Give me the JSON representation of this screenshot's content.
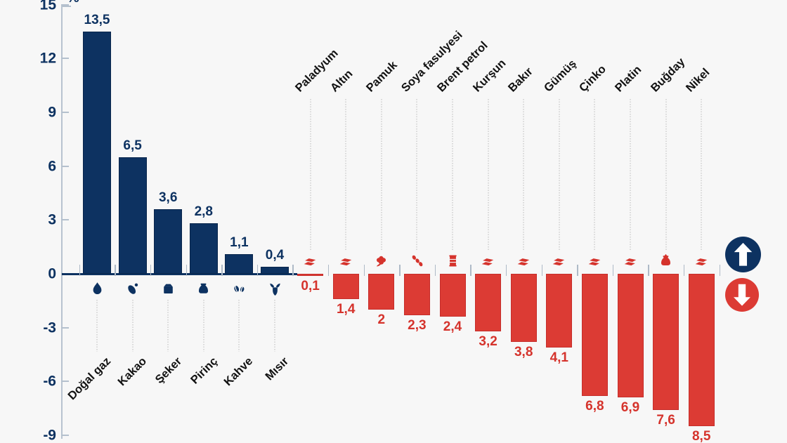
{
  "chart_data": {
    "type": "bar",
    "title": "",
    "value_unit": "%",
    "y_axis": {
      "label": "%",
      "ticks": [
        15,
        12,
        9,
        6,
        3,
        0,
        -3,
        -6,
        -9
      ],
      "min": -9.5,
      "max": 15.5,
      "grid": false
    },
    "legend": {
      "up_badge": "up-arrow-badge",
      "down_badge": "down-arrow-badge"
    },
    "bars": [
      {
        "label": "Doğal gaz",
        "value": 13.5,
        "display": "13,5",
        "direction": "up",
        "icon": "natural-gas-flame-icon"
      },
      {
        "label": "Kakao",
        "value": 6.5,
        "display": "6,5",
        "direction": "up",
        "icon": "cocoa-pod-icon"
      },
      {
        "label": "Şeker",
        "value": 3.6,
        "display": "3,6",
        "direction": "up",
        "icon": "sugar-box-icon"
      },
      {
        "label": "Pirinç",
        "value": 2.8,
        "display": "2,8",
        "direction": "up",
        "icon": "rice-sack-icon"
      },
      {
        "label": "Kahve",
        "value": 1.1,
        "display": "1,1",
        "direction": "up",
        "icon": "coffee-beans-icon"
      },
      {
        "label": "Mısır",
        "value": 0.4,
        "display": "0,4",
        "direction": "up",
        "icon": "corn-icon"
      },
      {
        "label": "Paladyum",
        "value": -0.1,
        "display": "0,1",
        "direction": "down",
        "icon": "metal-ingot-icon"
      },
      {
        "label": "Altın",
        "value": -1.4,
        "display": "1,4",
        "direction": "down",
        "icon": "metal-ingot-icon"
      },
      {
        "label": "Pamuk",
        "value": -2,
        "display": "2",
        "direction": "down",
        "icon": "cotton-boll-icon"
      },
      {
        "label": "Soya fasulyesi",
        "value": -2.3,
        "display": "2,3",
        "direction": "down",
        "icon": "soybean-icon"
      },
      {
        "label": "Brent petrol",
        "value": -2.4,
        "display": "2,4",
        "direction": "down",
        "icon": "oil-barrel-icon"
      },
      {
        "label": "Kurşun",
        "value": -3.2,
        "display": "3,2",
        "direction": "down",
        "icon": "metal-ingot-icon"
      },
      {
        "label": "Bakır",
        "value": -3.8,
        "display": "3,8",
        "direction": "down",
        "icon": "metal-ingot-icon"
      },
      {
        "label": "Gümüş",
        "value": -4.1,
        "display": "4,1",
        "direction": "down",
        "icon": "metal-ingot-icon"
      },
      {
        "label": "Çinko",
        "value": -6.8,
        "display": "6,8",
        "direction": "down",
        "icon": "metal-ingot-icon"
      },
      {
        "label": "Platin",
        "value": -6.9,
        "display": "6,9",
        "direction": "down",
        "icon": "metal-ingot-icon"
      },
      {
        "label": "Buğday",
        "value": -7.6,
        "display": "7,6",
        "direction": "down",
        "icon": "wheat-sack-icon"
      },
      {
        "label": "Nikel",
        "value": -8.5,
        "display": "8,5",
        "direction": "down",
        "icon": "metal-ingot-icon"
      }
    ],
    "colors": {
      "up": "#0d3261",
      "up_border": "#09264c",
      "down": "#dc3b34",
      "down_border": "#c62e2b",
      "background": "#f7f7f7",
      "axis": "#b8c3d0",
      "boundary_tick": "#aebac7",
      "dotted_connector": "#d8d8d8",
      "category_label": "#121212",
      "up_value_label": "#0d3261",
      "down_value_label": "#d5332c"
    }
  }
}
